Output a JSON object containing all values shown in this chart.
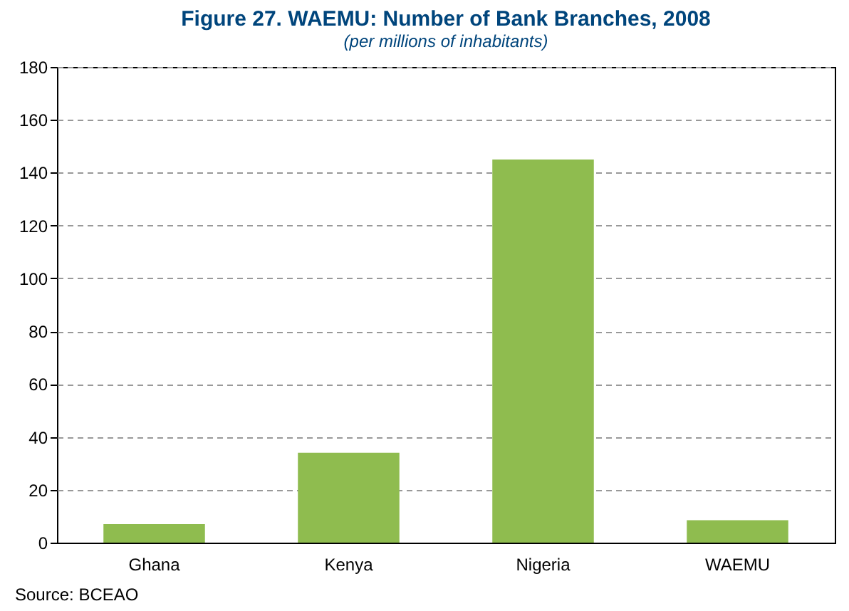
{
  "chart_data": {
    "type": "bar",
    "title": "Figure 27. WAEMU: Number of Bank Branches, 2008",
    "subtitle": "(per millions of inhabitants)",
    "categories": [
      "Ghana",
      "Kenya",
      "Nigeria",
      "WAEMU"
    ],
    "values": [
      7,
      34,
      145,
      8.5
    ],
    "color": "#8fbc4f",
    "ylim": [
      0,
      180
    ],
    "yticks": [
      0,
      20,
      40,
      60,
      80,
      100,
      120,
      140,
      160,
      180
    ],
    "grid": "y",
    "annotations": [
      "Source: BCEAO"
    ]
  }
}
